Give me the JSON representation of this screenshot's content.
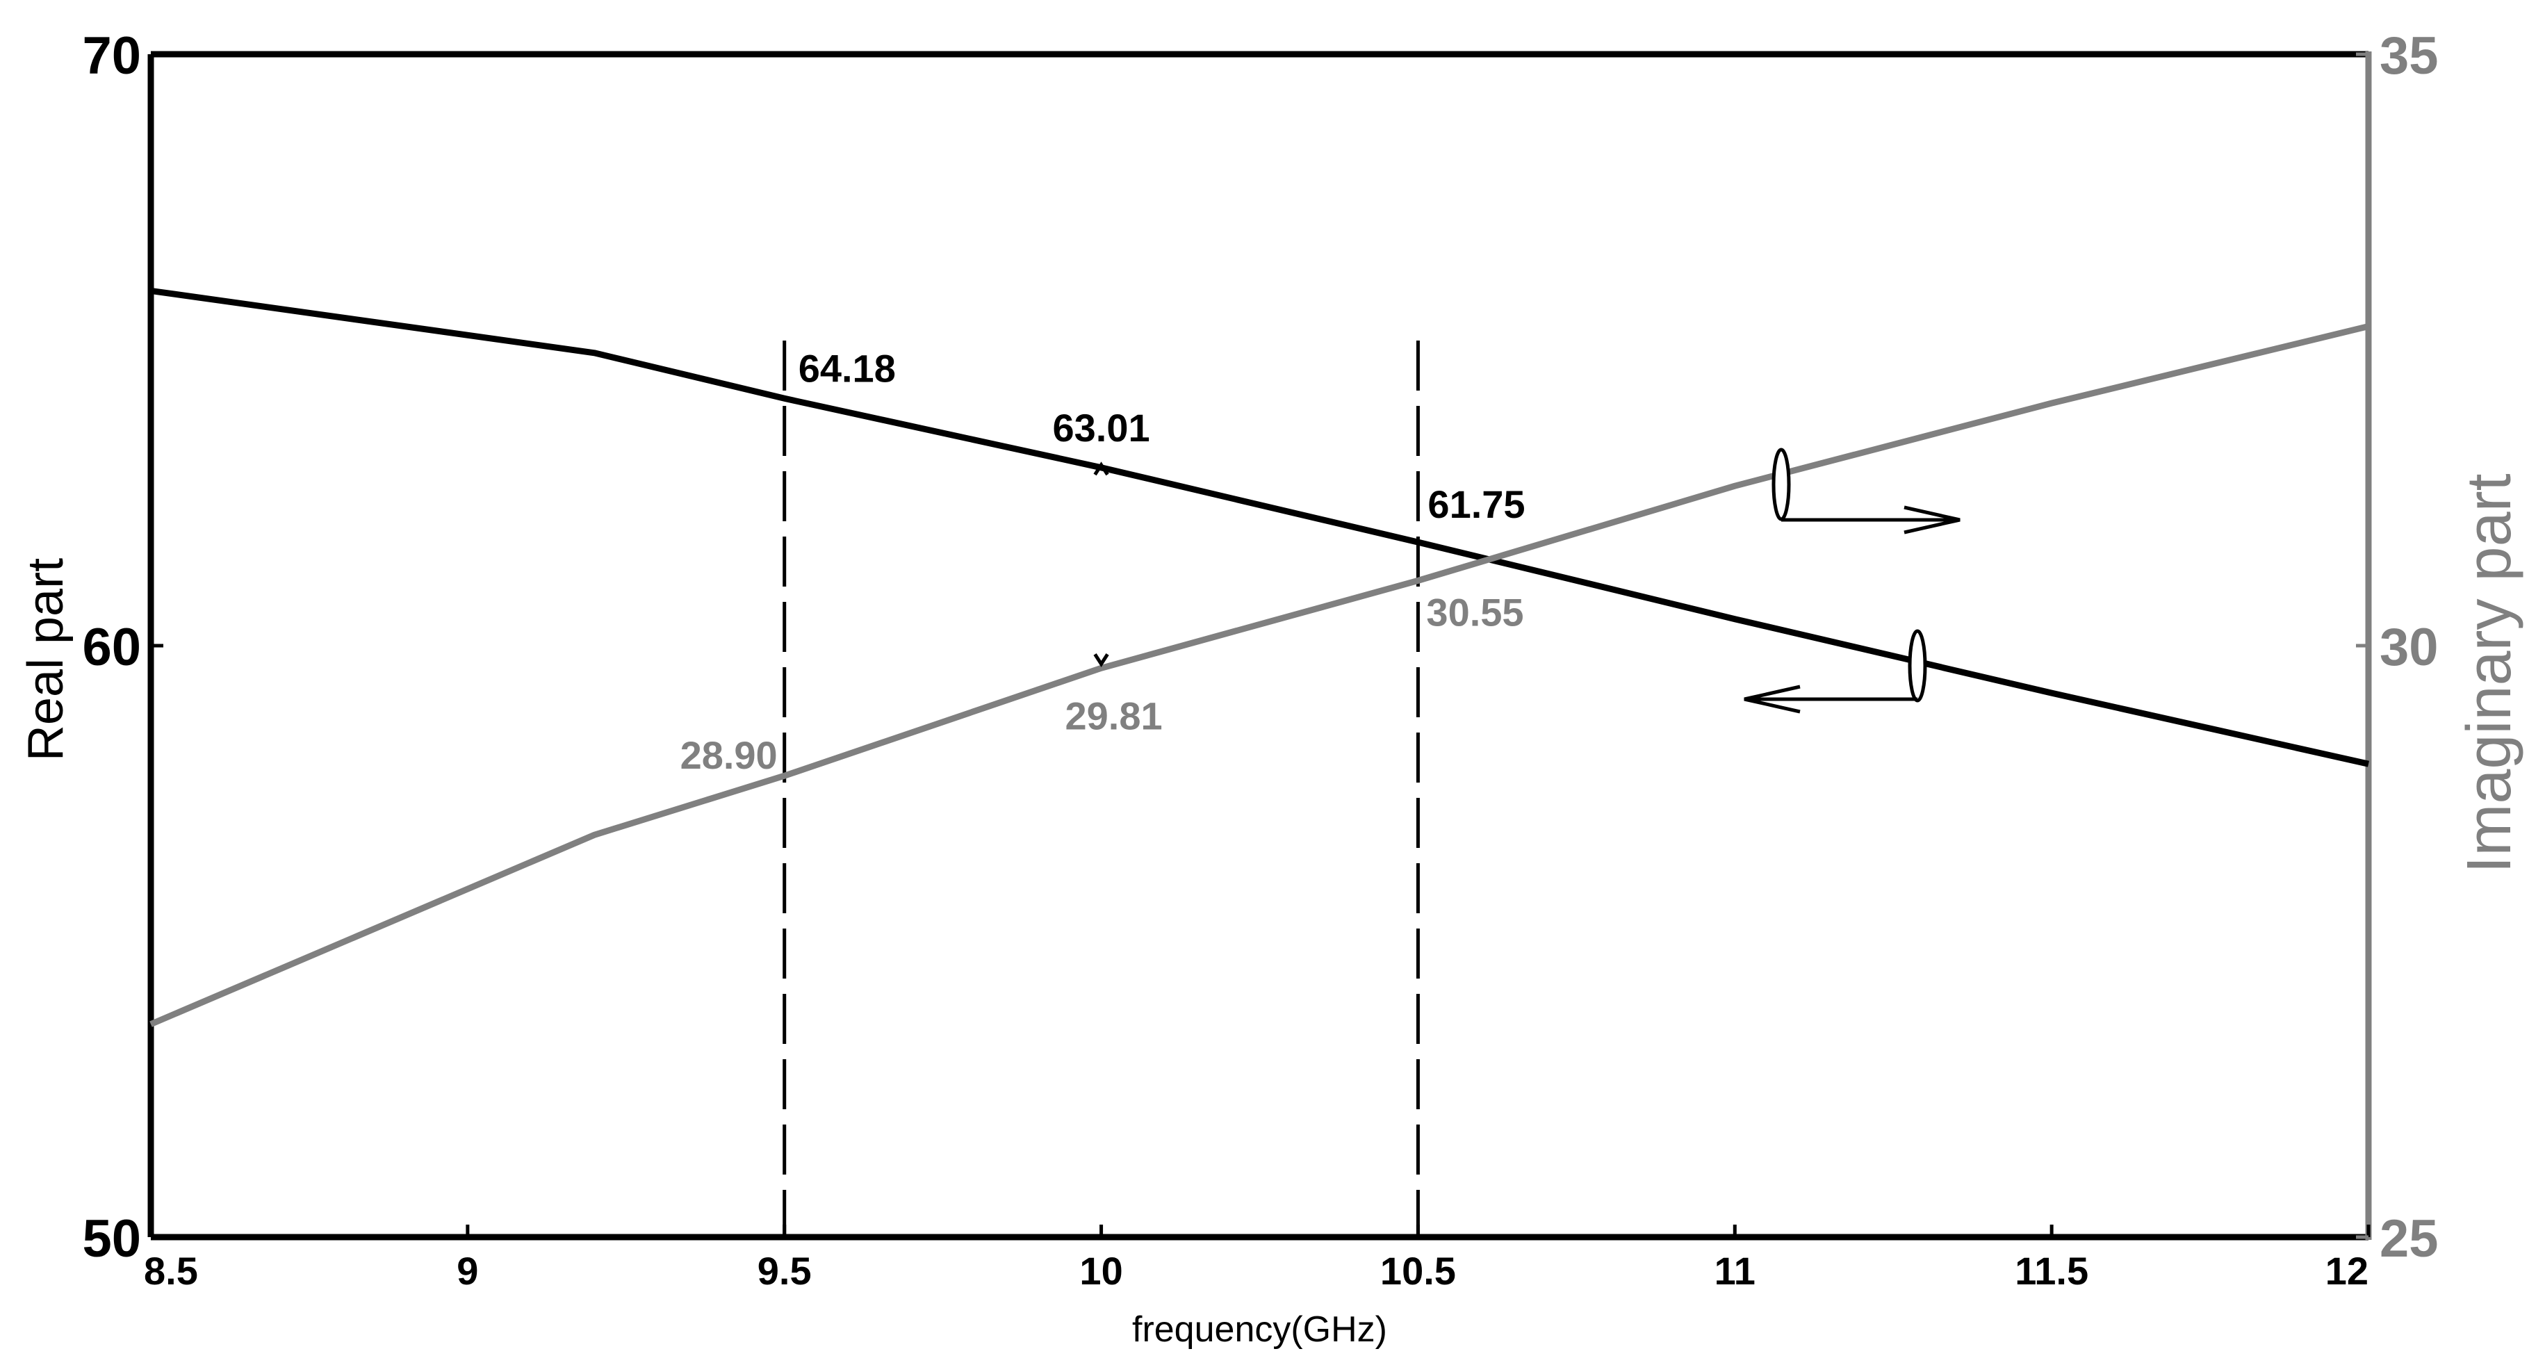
{
  "chart_data": {
    "type": "line",
    "xlabel": "frequency(GHz)",
    "ylabel_left": "Real part",
    "ylabel_right": "Imaginary part",
    "xlim": [
      8.5,
      12
    ],
    "ylim_left": [
      50,
      70
    ],
    "ylim_right": [
      25,
      35
    ],
    "x_ticks": [
      "8.5",
      "9",
      "9.5",
      "10",
      "10.5",
      "11",
      "11.5",
      "12"
    ],
    "y_left_ticks": [
      "50",
      "60",
      "70"
    ],
    "y_right_ticks": [
      "25",
      "30",
      "35"
    ],
    "grid": false,
    "colors": {
      "real": "#000000",
      "imaginary": "#808080"
    },
    "series": [
      {
        "axis": "left",
        "x": [
          8.5,
          9.2,
          9.5,
          10.0,
          10.5,
          11.0,
          11.5,
          12.0
        ],
        "y": [
          66.0,
          64.95,
          64.18,
          63.01,
          61.75,
          60.45,
          59.2,
          58.0
        ]
      },
      {
        "axis": "right",
        "x": [
          8.5,
          9.2,
          9.5,
          10.0,
          10.5,
          11.0,
          11.5,
          12.0
        ],
        "y": [
          26.8,
          28.4,
          28.9,
          29.81,
          30.55,
          31.35,
          32.05,
          32.7
        ]
      }
    ],
    "vlines": [
      9.5,
      10.5
    ],
    "annotations": [
      {
        "text": "64.18",
        "x": 9.5,
        "y": 64.18,
        "axis": "left",
        "series": 0
      },
      {
        "text": "63.01",
        "x": 10.0,
        "y": 63.01,
        "axis": "left",
        "series": 0
      },
      {
        "text": "61.75",
        "x": 10.5,
        "y": 61.75,
        "axis": "left",
        "series": 0
      },
      {
        "text": "28.90",
        "x": 9.5,
        "y": 28.9,
        "axis": "right",
        "series": 1
      },
      {
        "text": "29.81",
        "x": 10.0,
        "y": 29.81,
        "axis": "right",
        "series": 1
      },
      {
        "text": "30.55",
        "x": 10.5,
        "y": 30.55,
        "axis": "right",
        "series": 1
      }
    ],
    "axis_indicators": [
      {
        "series": 1,
        "points_to": "right"
      },
      {
        "series": 0,
        "points_to": "left"
      }
    ]
  }
}
